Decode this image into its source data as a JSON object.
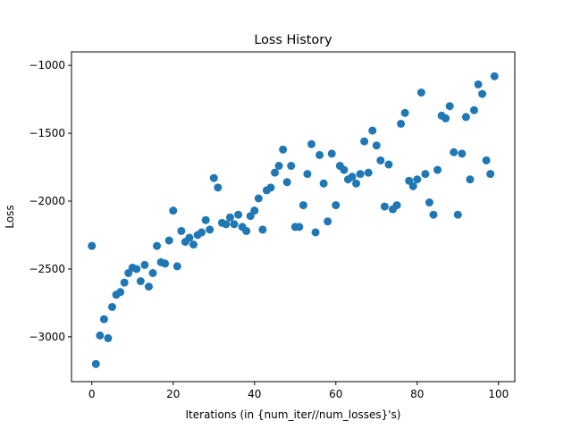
{
  "chart_data": {
    "type": "scatter",
    "title": "Loss History",
    "xlabel": "Iterations (in {num_iter//num_losses}'s)",
    "ylabel": "Loss",
    "xlim": [
      -5,
      104
    ],
    "ylim": [
      -3330,
      -900
    ],
    "xticks": [
      0,
      20,
      40,
      60,
      80,
      100
    ],
    "yticks": [
      -3000,
      -2500,
      -2000,
      -1500,
      -1000
    ],
    "xtick_labels": [
      "0",
      "20",
      "40",
      "60",
      "80",
      "100"
    ],
    "ytick_labels": [
      "−3000",
      "−2500",
      "−2000",
      "−1500",
      "−1000"
    ],
    "grid": false,
    "marker_color": "#1f77b4",
    "x": [
      0,
      1,
      2,
      3,
      4,
      5,
      6,
      7,
      8,
      9,
      10,
      11,
      12,
      13,
      14,
      15,
      16,
      17,
      18,
      19,
      20,
      21,
      22,
      23,
      24,
      25,
      26,
      27,
      28,
      29,
      30,
      31,
      32,
      33,
      34,
      35,
      36,
      37,
      38,
      39,
      40,
      41,
      42,
      43,
      44,
      45,
      46,
      47,
      48,
      49,
      50,
      51,
      52,
      53,
      54,
      55,
      56,
      57,
      58,
      59,
      60,
      61,
      62,
      63,
      64,
      65,
      66,
      67,
      68,
      69,
      70,
      71,
      72,
      73,
      74,
      75,
      76,
      77,
      78,
      79,
      80,
      81,
      82,
      83,
      84,
      85,
      86,
      87,
      88,
      89,
      90,
      91,
      92,
      93,
      94,
      95,
      96,
      97,
      98,
      99
    ],
    "y": [
      -2330,
      -3200,
      -2990,
      -2870,
      -3010,
      -2780,
      -2690,
      -2670,
      -2600,
      -2530,
      -2490,
      -2500,
      -2590,
      -2470,
      -2630,
      -2530,
      -2330,
      -2450,
      -2460,
      -2290,
      -2070,
      -2480,
      -2220,
      -2300,
      -2270,
      -2320,
      -2250,
      -2230,
      -2140,
      -2210,
      -1830,
      -1900,
      -2160,
      -2170,
      -2120,
      -2170,
      -2100,
      -2190,
      -2220,
      -2110,
      -2070,
      -1980,
      -2210,
      -1920,
      -1900,
      -1790,
      -1740,
      -1620,
      -1860,
      -1740,
      -2190,
      -2190,
      -2030,
      -1800,
      -1580,
      -2230,
      -1660,
      -1870,
      -2150,
      -1650,
      -2030,
      -1740,
      -1770,
      -1840,
      -1820,
      -1870,
      -1800,
      -1560,
      -1790,
      -1480,
      -1590,
      -1700,
      -2040,
      -1730,
      -2060,
      -2030,
      -1430,
      -1350,
      -1850,
      -1890,
      -1840,
      -1200,
      -1800,
      -2010,
      -2100,
      -1770,
      -1370,
      -1390,
      -1300,
      -1640,
      -2100,
      -1650,
      -1380,
      -1840,
      -1330,
      -1140,
      -1210,
      -1700,
      -1800,
      -1080
    ]
  }
}
